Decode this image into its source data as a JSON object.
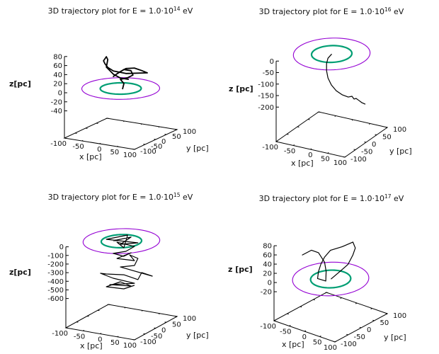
{
  "chart_data": [
    {
      "type": "line3d",
      "title": {
        "prefix": "3D trajectory plot for E = 1.0·10",
        "exponent": "14",
        "suffix": " eV"
      },
      "xlabel": "x [pc]",
      "ylabel": "y [pc]",
      "zlabel": "z[pc]",
      "xticks": [
        -100,
        -50,
        0,
        50,
        100
      ],
      "yticks": [
        -100,
        -50,
        0,
        50,
        100
      ],
      "zticks": [
        80,
        60,
        40,
        20,
        0,
        -20,
        -40
      ],
      "xlim": [
        -100,
        100
      ],
      "ylim": [
        -100,
        100
      ],
      "zlim": [
        -100,
        80
      ],
      "rings": [
        {
          "radius": 95,
          "z": 0,
          "color": "#9400d3"
        },
        {
          "radius": 50,
          "z": 0,
          "color": "#009e73"
        }
      ],
      "trajectory_color": "#000000",
      "trajectory": [
        [
          5,
          0,
          -1
        ],
        [
          9,
          0,
          12
        ],
        [
          -1,
          0,
          20
        ],
        [
          19,
          0,
          26
        ],
        [
          35,
          0,
          34
        ],
        [
          29,
          0,
          43
        ],
        [
          9,
          0,
          43
        ],
        [
          -11,
          0,
          31
        ],
        [
          -21,
          0,
          24
        ],
        [
          -5,
          0,
          35
        ],
        [
          15,
          0,
          46
        ],
        [
          39,
          0,
          50
        ],
        [
          60,
          0,
          47
        ],
        [
          76,
          0,
          44
        ],
        [
          15,
          0,
          35
        ],
        [
          -21,
          0,
          36
        ],
        [
          -37,
          0,
          42
        ],
        [
          -45,
          0,
          49
        ],
        [
          -49,
          0,
          55
        ],
        [
          -41,
          0,
          65
        ],
        [
          -37,
          0,
          59
        ],
        [
          -41,
          0,
          42
        ],
        [
          -21,
          0,
          29
        ],
        [
          -1,
          0,
          23
        ],
        [
          23,
          0,
          23
        ]
      ]
    },
    {
      "type": "line3d",
      "title": {
        "prefix": "3D trajectory plot for E = 1.0·10",
        "exponent": "16",
        "suffix": " eV"
      },
      "xlabel": "x [pc]",
      "ylabel": "y [pc]",
      "zlabel": "z [pc]",
      "xticks": [
        -100,
        -50,
        0,
        50,
        100
      ],
      "yticks": [
        -100,
        -50,
        0,
        50,
        100
      ],
      "zticks": [
        0,
        -50,
        -100,
        -150,
        -200
      ],
      "xlim": [
        -100,
        100
      ],
      "ylim": [
        -100,
        100
      ],
      "zlim": [
        -350,
        0
      ],
      "rings": [
        {
          "radius": 95,
          "z": 0,
          "color": "#9400d3"
        },
        {
          "radius": 50,
          "z": 0,
          "color": "#009e73"
        }
      ],
      "trajectory_color": "#000000",
      "trajectory": [
        [
          0,
          0,
          0
        ],
        [
          -11,
          0,
          -22
        ],
        [
          -15,
          0,
          -47
        ],
        [
          -15,
          0,
          -78
        ],
        [
          -11,
          0,
          -108
        ],
        [
          -1,
          0,
          -135
        ],
        [
          13,
          0,
          -155
        ],
        [
          30,
          0,
          -167
        ],
        [
          48,
          0,
          -171
        ],
        [
          59,
          0,
          -164
        ],
        [
          65,
          0,
          -174
        ],
        [
          71,
          0,
          -169
        ],
        [
          79,
          0,
          -175
        ],
        [
          88,
          0,
          -182
        ],
        [
          98,
          0,
          -185
        ]
      ]
    },
    {
      "type": "line3d",
      "title": {
        "prefix": "3D trajectory plot for E = 1.0·10",
        "exponent": "15",
        "suffix": " eV"
      },
      "xlabel": "x [pc]",
      "ylabel": "y [pc]",
      "zlabel": "z[pc]",
      "xticks": [
        -100,
        -50,
        0,
        50,
        100
      ],
      "yticks": [
        -100,
        -50,
        0,
        50,
        100
      ],
      "zticks": [
        0,
        -100,
        -200,
        -300,
        -400,
        -500,
        -600
      ],
      "xlim": [
        -100,
        100
      ],
      "ylim": [
        -100,
        100
      ],
      "zlim": [
        -940,
        0
      ],
      "rings": [
        {
          "radius": 95,
          "z": 0,
          "color": "#9400d3"
        },
        {
          "radius": 50,
          "z": 0,
          "color": "#009e73"
        }
      ],
      "trajectory_color": "#000000",
      "trajectory": [
        [
          -24,
          0,
          -12
        ],
        [
          28,
          0,
          66
        ],
        [
          -3,
          0,
          -39
        ],
        [
          48,
          0,
          14
        ],
        [
          -44,
          0,
          -9
        ],
        [
          18,
          0,
          83
        ],
        [
          7,
          0,
          -72
        ],
        [
          -13,
          0,
          -21
        ],
        [
          38,
          0,
          -35
        ],
        [
          13,
          0,
          -109
        ],
        [
          -24,
          0,
          -159
        ],
        [
          7,
          0,
          -171
        ],
        [
          28,
          0,
          -115
        ],
        [
          -13,
          0,
          -210
        ],
        [
          38,
          0,
          -199
        ],
        [
          24,
          0,
          -143
        ],
        [
          48,
          0,
          -167
        ],
        [
          38,
          0,
          -256
        ],
        [
          -3,
          0,
          -302
        ],
        [
          90,
          0,
          -343
        ],
        [
          59,
          0,
          -324
        ],
        [
          48,
          0,
          -413
        ],
        [
          7,
          0,
          -385
        ],
        [
          -44,
          0,
          -412
        ],
        [
          -61,
          0,
          -416
        ],
        [
          -24,
          0,
          -447
        ],
        [
          38,
          0,
          -462
        ],
        [
          -34,
          0,
          -528
        ],
        [
          28,
          0,
          -501
        ],
        [
          -3,
          0,
          -474
        ],
        [
          -44,
          0,
          -560
        ],
        [
          7,
          0,
          -549
        ],
        [
          38,
          0,
          -486
        ]
      ]
    },
    {
      "type": "line3d",
      "title": {
        "prefix": "3D trajectory plot for E = 1.0·10",
        "exponent": "17",
        "suffix": " eV"
      },
      "xlabel": "x [pc]",
      "ylabel": "y [pc]",
      "zlabel": "z [pc]",
      "xticks": [
        -100,
        -50,
        0,
        50,
        100
      ],
      "yticks": [
        -100,
        -50,
        0,
        50,
        100
      ],
      "zticks": [
        80,
        60,
        40,
        20,
        0,
        -20
      ],
      "xlim": [
        -100,
        100
      ],
      "ylim": [
        -100,
        100
      ],
      "zlim": [
        -83,
        80
      ],
      "rings": [
        {
          "radius": 95,
          "z": 0,
          "color": "#9400d3"
        },
        {
          "radius": 50,
          "z": 0,
          "color": "#009e73"
        }
      ],
      "trajectory_color": "#000000",
      "trajectory": [
        [
          1,
          0,
          0
        ],
        [
          30,
          0,
          23
        ],
        [
          57,
          0,
          45
        ],
        [
          73,
          0,
          69
        ],
        [
          81,
          0,
          86
        ],
        [
          73,
          0,
          97
        ],
        [
          38,
          0,
          79
        ],
        [
          -1,
          0,
          62
        ],
        [
          -20,
          0,
          43
        ],
        [
          -32,
          0,
          25
        ],
        [
          -40,
          0,
          7
        ],
        [
          -43,
          0,
          -9
        ],
        [
          -16,
          0,
          -8
        ],
        [
          -15,
          0,
          13
        ],
        [
          -20,
          0,
          32
        ],
        [
          -40,
          0,
          48
        ],
        [
          -63,
          0,
          48
        ],
        [
          -94,
          0,
          30
        ]
      ]
    }
  ]
}
